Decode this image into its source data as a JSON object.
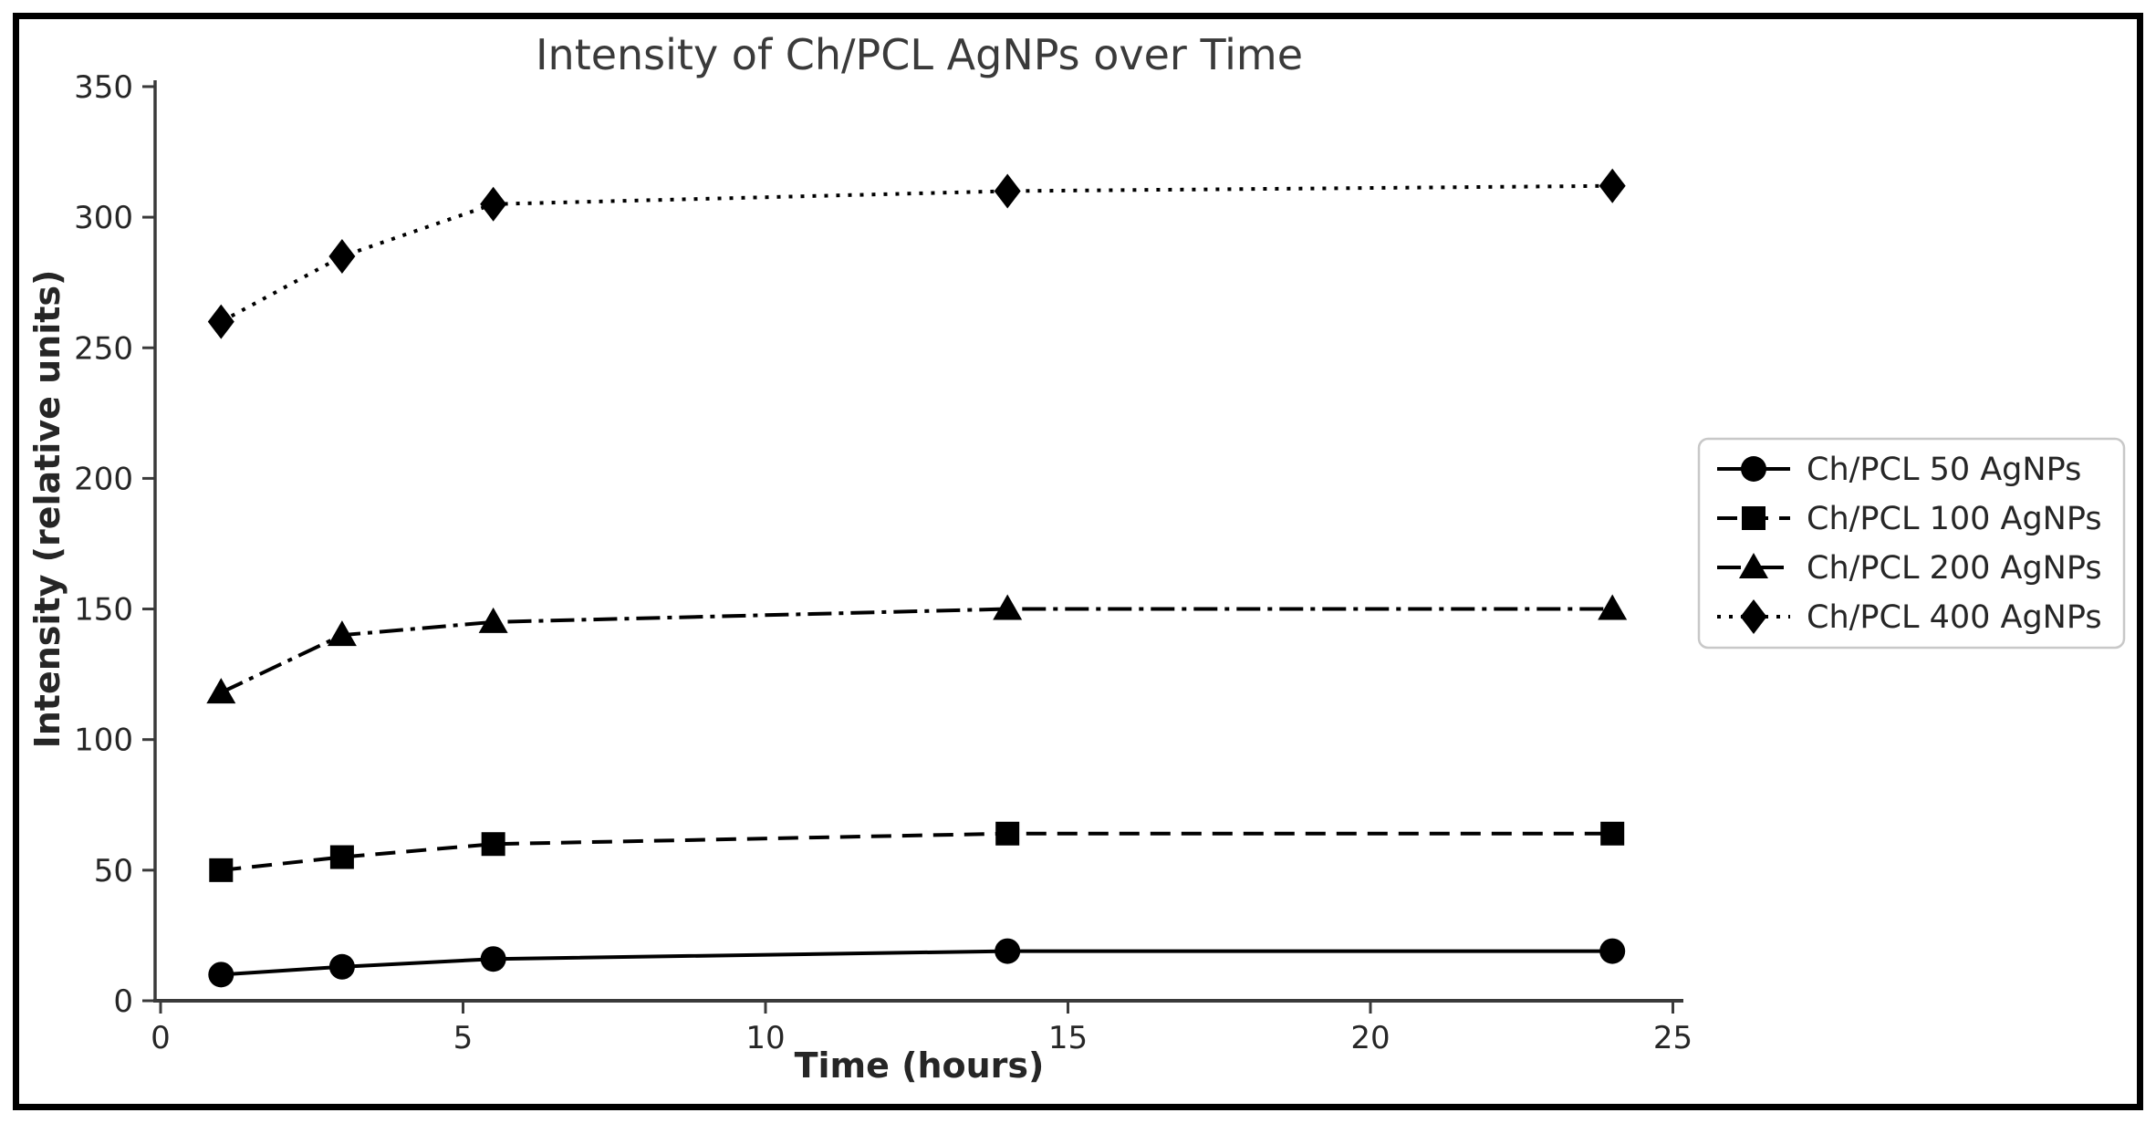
{
  "chart_data": {
    "type": "line",
    "title": "Intensity of Ch/PCL AgNPs over Time",
    "xlabel": "Time (hours)",
    "ylabel": "Intensity (relative units)",
    "x": [
      1,
      3,
      5.5,
      14,
      24
    ],
    "series": [
      {
        "name": "Ch/PCL 50 AgNPs",
        "marker": "circle",
        "linestyle": "solid",
        "values": [
          10,
          13,
          16,
          19,
          19
        ]
      },
      {
        "name": "Ch/PCL 100 AgNPs",
        "marker": "square",
        "linestyle": "dashed",
        "values": [
          50,
          55,
          60,
          64,
          64
        ]
      },
      {
        "name": "Ch/PCL 200 AgNPs",
        "marker": "triangle",
        "linestyle": "dashdot",
        "values": [
          118,
          140,
          145,
          150,
          150
        ]
      },
      {
        "name": "Ch/PCL 400 AgNPs",
        "marker": "diamond",
        "linestyle": "dotted",
        "values": [
          260,
          285,
          305,
          310,
          312
        ]
      }
    ],
    "xticks": [
      0,
      5,
      10,
      15,
      20,
      25
    ],
    "yticks": [
      0,
      50,
      100,
      150,
      200,
      250,
      300,
      350
    ],
    "xlim": [
      0,
      25.2
    ],
    "ylim": [
      0,
      352
    ],
    "grid": false,
    "legend_position": "right-outside",
    "colors": {
      "line": "#000000",
      "marker": "#000000",
      "axis": "#3a3a3a",
      "tick_text": "#262626",
      "title_text": "#3a3a3a",
      "legend_border": "#c8c8c8",
      "background": "#ffffff",
      "figure_border": "#000000"
    }
  }
}
